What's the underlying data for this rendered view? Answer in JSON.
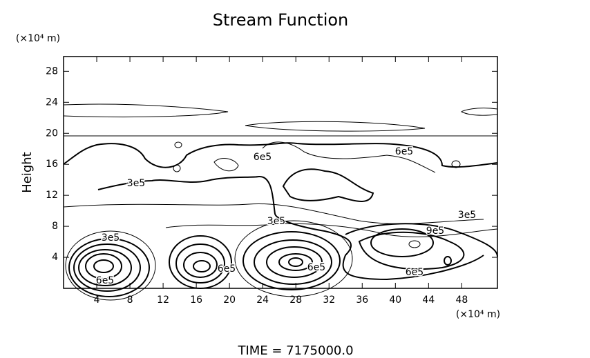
{
  "chart_data": {
    "type": "contour",
    "title": "Stream Function",
    "y_label": "Height",
    "y_unit": "(×10⁴ m)",
    "x_unit": "(×10⁴ m)",
    "xlim": [
      0,
      52.3
    ],
    "ylim": [
      0,
      29.9
    ],
    "xticks": [
      4,
      8,
      12,
      16,
      20,
      24,
      28,
      32,
      36,
      40,
      44,
      48
    ],
    "yticks": [
      4,
      8,
      12,
      16,
      20,
      24,
      28
    ],
    "contour_labels": [
      "3e5",
      "6e5",
      "6e5",
      "3e5",
      "3e5",
      "9e5",
      "3e5",
      "6e5",
      "6e5",
      "6e5",
      "6e5"
    ],
    "footer": "TIME = 7175000.0"
  }
}
